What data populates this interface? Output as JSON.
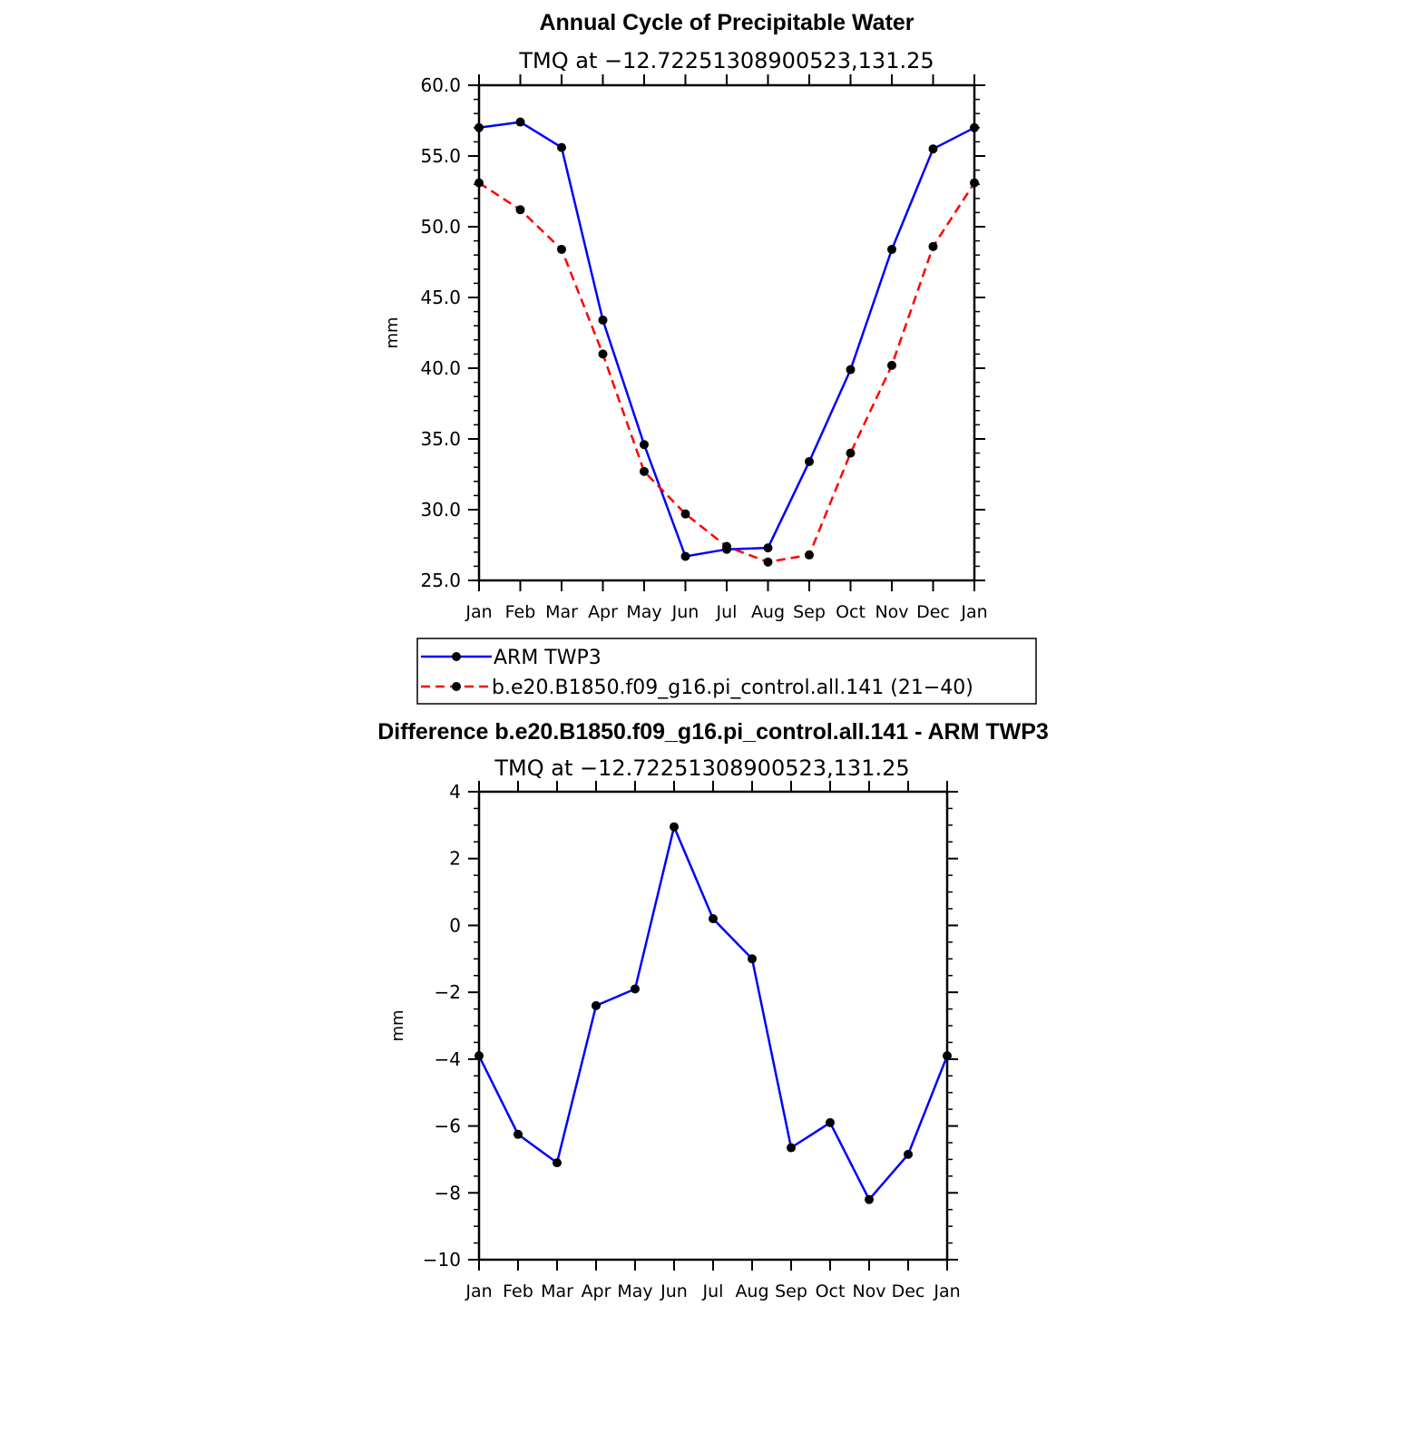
{
  "chart_data": [
    {
      "type": "line",
      "title": "Annual Cycle of Precipitable Water",
      "subtitle": "TMQ at −12.72251308900523,131.25",
      "xlabel": "",
      "ylabel": "mm",
      "categories": [
        "Jan",
        "Feb",
        "Mar",
        "Apr",
        "May",
        "Jun",
        "Jul",
        "Aug",
        "Sep",
        "Oct",
        "Nov",
        "Dec",
        "Jan"
      ],
      "ylim": [
        25,
        60
      ],
      "yticks": [
        "25.0",
        "30.0",
        "35.0",
        "40.0",
        "45.0",
        "50.0",
        "55.0",
        "60.0"
      ],
      "grid": false,
      "legend_position": "below",
      "series": [
        {
          "name": "ARM TWP3",
          "color": "#0000ff",
          "line_style": "solid",
          "marker": "circle",
          "values": [
            57.0,
            57.4,
            55.6,
            43.4,
            34.6,
            26.7,
            27.2,
            27.3,
            33.4,
            39.9,
            48.4,
            55.5,
            57.0
          ]
        },
        {
          "name": "b.e20.B1850.f09_g16.pi_control.all.141 (21−40)",
          "color": "#ff0000",
          "line_style": "dashed",
          "marker": "circle",
          "values": [
            53.1,
            51.2,
            48.4,
            41.0,
            32.7,
            29.7,
            27.4,
            26.3,
            26.8,
            34.0,
            40.2,
            48.6,
            53.1
          ]
        }
      ]
    },
    {
      "type": "line",
      "title": "Difference b.e20.B1850.f09_g16.pi_control.all.141 - ARM TWP3",
      "subtitle": "TMQ at −12.72251308900523,131.25",
      "xlabel": "",
      "ylabel": "mm",
      "categories": [
        "Jan",
        "Feb",
        "Mar",
        "Apr",
        "May",
        "Jun",
        "Jul",
        "Aug",
        "Sep",
        "Oct",
        "Nov",
        "Dec",
        "Jan"
      ],
      "ylim": [
        -10,
        4
      ],
      "yticks": [
        "−10",
        "−8",
        "−6",
        "−4",
        "−2",
        "0",
        "2",
        "4"
      ],
      "grid": false,
      "series": [
        {
          "color": "#0000ff",
          "line_style": "solid",
          "marker": "circle",
          "values": [
            -3.9,
            -6.25,
            -7.1,
            -2.4,
            -1.9,
            2.95,
            0.2,
            -1.0,
            -6.65,
            -5.9,
            -8.2,
            -6.85,
            -3.9
          ]
        }
      ]
    }
  ]
}
